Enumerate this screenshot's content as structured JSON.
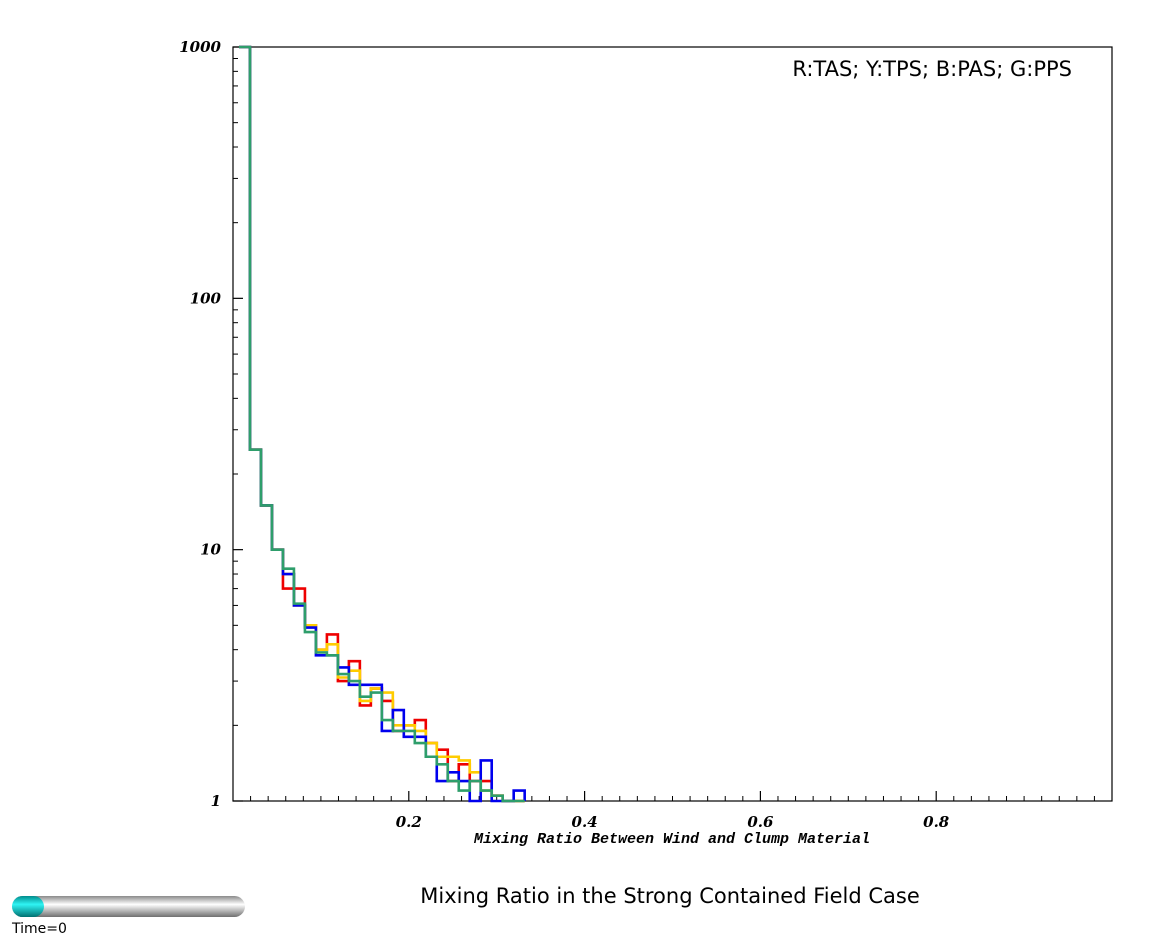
{
  "chart_data": {
    "type": "line",
    "title": "Mixing Ratio in the Strong Contained Field Case",
    "legend": "R:TAS; Y:TPS; B:PAS; G:PPS",
    "legend_position": "top-right",
    "xlabel": "Mixing Ratio Between Wind and Clump Material",
    "ylabel": "",
    "xlim": [
      0,
      1.0
    ],
    "ylim": [
      1,
      1000
    ],
    "yscale": "log",
    "grid": false,
    "step": true,
    "x_ticks": [
      "0.2",
      "0.4",
      "0.6",
      "0.8"
    ],
    "x_tick_values": [
      0.2,
      0.4,
      0.6,
      0.8
    ],
    "y_ticks": [
      "1",
      "10",
      "100",
      "1000"
    ],
    "y_tick_values": [
      1,
      10,
      100,
      1000
    ],
    "bin_width": 0.0125,
    "bin_start": 0.0,
    "series": [
      {
        "color": "#ee0000",
        "values": [
          2000,
          25,
          15,
          10,
          7,
          7,
          5,
          4,
          4.6,
          3,
          3.6,
          2.4,
          2.8,
          2.5,
          1.9,
          2,
          2.1,
          1.7,
          1.6,
          1.2,
          1.4,
          1.2,
          1.2,
          1.05,
          1,
          1
        ]
      },
      {
        "color": "#ffcc00",
        "values": [
          2000,
          25,
          15,
          10,
          8,
          6,
          5,
          4,
          4.2,
          3.1,
          3.3,
          2.5,
          2.8,
          2.7,
          2,
          2,
          1.9,
          1.7,
          1.5,
          1.5,
          1.45,
          1.3,
          1.1,
          1.05,
          1,
          1
        ]
      },
      {
        "color": "#0000ee",
        "values": [
          2000,
          25,
          15,
          10,
          8,
          6,
          4.9,
          3.8,
          3.8,
          3.4,
          2.9,
          2.9,
          2.9,
          1.9,
          2.3,
          1.8,
          1.8,
          1.5,
          1.2,
          1.3,
          1.2,
          1,
          1.45,
          1,
          1,
          1.1
        ]
      },
      {
        "color": "#2e9e6b",
        "values": [
          2000,
          25,
          15,
          10,
          8.4,
          6.1,
          4.7,
          3.9,
          3.8,
          3.2,
          3,
          2.6,
          2.7,
          2.1,
          1.9,
          1.9,
          1.7,
          1.5,
          1.4,
          1.2,
          1.1,
          1.2,
          1.1,
          1.05,
          1,
          1
        ]
      }
    ]
  },
  "time_slider": {
    "label": "Time=0",
    "value": 0
  }
}
